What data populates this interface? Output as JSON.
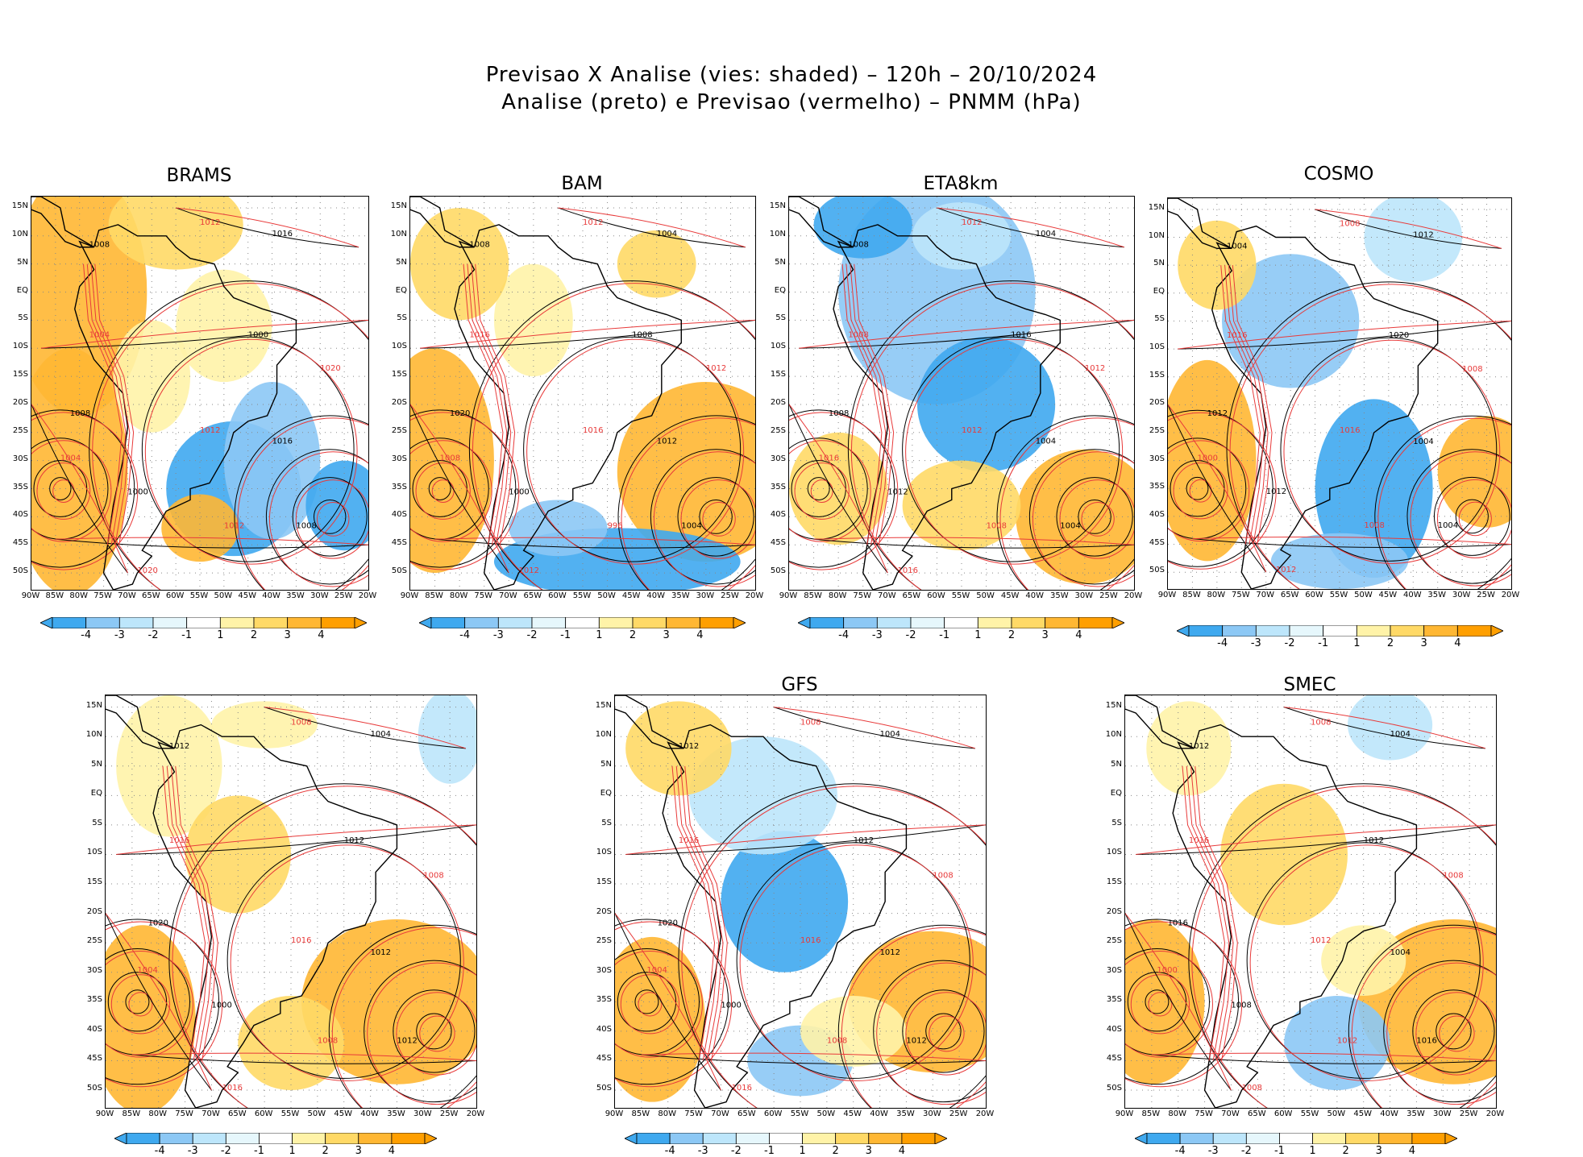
{
  "header": {
    "line1": "Previsao X Analise (vies: shaded) – 120h – 20/10/2024",
    "line2": "Analise (preto) e Previsao (vermelho) – PNMM (hPa)"
  },
  "axes": {
    "lat_labels": [
      "15N",
      "10N",
      "5N",
      "EQ",
      "5S",
      "10S",
      "15S",
      "20S",
      "25S",
      "30S",
      "35S",
      "40S",
      "45S",
      "50S"
    ],
    "lon_labels": [
      "90W",
      "85W",
      "80W",
      "75W",
      "70W",
      "65W",
      "60W",
      "55W",
      "50W",
      "45W",
      "40W",
      "35W",
      "30W",
      "25W",
      "20W"
    ]
  },
  "colorbar": {
    "labels": [
      "-4",
      "-3",
      "-2",
      "-1",
      "1",
      "2",
      "3",
      "4"
    ],
    "colors": [
      "#3fa9ef",
      "#8cc8f5",
      "#bde6fb",
      "#e6f7fc",
      "#ffffff",
      "#fff3a8",
      "#ffd966",
      "#ffb733",
      "#ff9f00"
    ]
  },
  "colors": {
    "analysis_contour": "#000000",
    "forecast_contour": "#e83a3a",
    "land_outline": "#000000"
  },
  "panels": [
    {
      "id": "brams",
      "title": "BRAMS",
      "contours": [
        "1008",
        "1012",
        "1016",
        "1004",
        "1000",
        "1020",
        "1008",
        "1012",
        "1016",
        "1004",
        "1000",
        "1012",
        "1008",
        "1020"
      ]
    },
    {
      "id": "bam",
      "title": "BAM",
      "contours": [
        "1008",
        "1012",
        "1004",
        "1016",
        "1008",
        "1012",
        "1020",
        "1016",
        "1012",
        "1008",
        "1000",
        "996",
        "1004",
        "1012"
      ]
    },
    {
      "id": "eta",
      "title": "ETA8km",
      "contours": [
        "1008",
        "1012",
        "1004",
        "1008",
        "1016",
        "1012",
        "1008",
        "1012",
        "1004",
        "1016",
        "1012",
        "1008",
        "1004",
        "1016"
      ]
    },
    {
      "id": "cosmo",
      "title": "COSMO",
      "contours": [
        "1004",
        "1008",
        "1012",
        "1016",
        "1020",
        "1008",
        "1012",
        "1016",
        "1004",
        "1000",
        "1012",
        "1008",
        "1004",
        "1012"
      ]
    },
    {
      "id": "unnamed",
      "title": "",
      "contours": [
        "1012",
        "1008",
        "1004",
        "1016",
        "1012",
        "1008",
        "1020",
        "1016",
        "1012",
        "1004",
        "1000",
        "1008",
        "1012",
        "1016"
      ]
    },
    {
      "id": "gfs",
      "title": "GFS",
      "contours": [
        "1012",
        "1008",
        "1004",
        "1016",
        "1012",
        "1008",
        "1020",
        "1016",
        "1012",
        "1004",
        "1000",
        "1008",
        "1012",
        "1016"
      ]
    },
    {
      "id": "smec",
      "title": "SMEC",
      "contours": [
        "1012",
        "1008",
        "1004",
        "1016",
        "1012",
        "1008",
        "1016",
        "1012",
        "1004",
        "1000",
        "1008",
        "1012",
        "1016",
        "1008"
      ]
    }
  ]
}
